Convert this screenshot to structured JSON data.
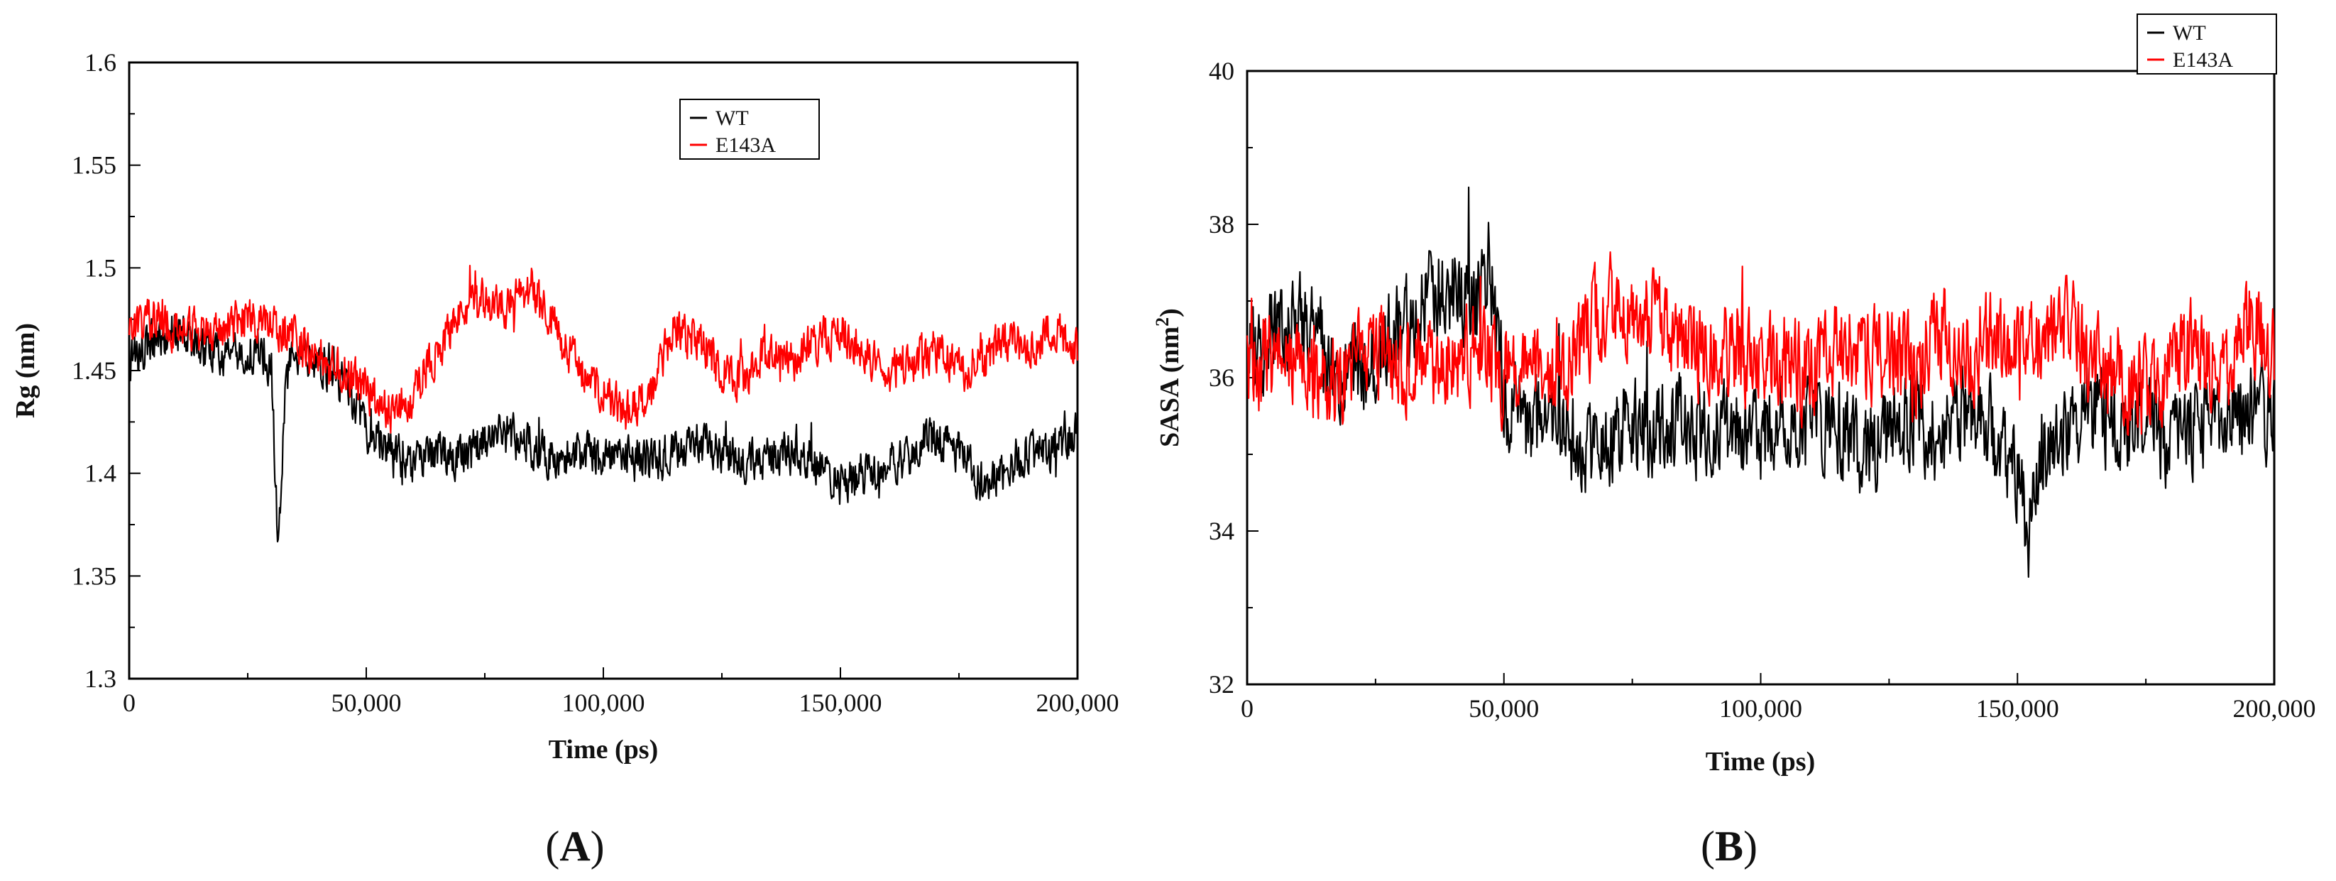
{
  "chart_data": [
    {
      "type": "line",
      "panel": "A",
      "panel_label_open": "(",
      "panel_label_letter": "A",
      "panel_label_close": ")",
      "xlabel": "Time (ps)",
      "ylabel": "Rg (nm)",
      "xlim": [
        0,
        200000
      ],
      "ylim": [
        1.3,
        1.6
      ],
      "xticks": [
        0,
        50000,
        100000,
        150000,
        200000
      ],
      "xtick_labels": [
        "0",
        "50,000",
        "100,000",
        "150,000",
        "200,000"
      ],
      "yticks": [
        1.3,
        1.35,
        1.4,
        1.45,
        1.5,
        1.55,
        1.6
      ],
      "ytick_labels": [
        "1.3",
        "1.35",
        "1.4",
        "1.45",
        "1.5",
        "1.55",
        "1.6"
      ],
      "legend_position": "top-center",
      "series": [
        {
          "name": "WT",
          "color": "#000000",
          "x": [
            0,
            5000,
            10000,
            15000,
            20000,
            25000,
            30000,
            31500,
            33000,
            35000,
            40000,
            45000,
            50000,
            55000,
            60000,
            65000,
            70000,
            75000,
            80000,
            85000,
            90000,
            95000,
            100000,
            105000,
            110000,
            115000,
            120000,
            125000,
            130000,
            135000,
            140000,
            145000,
            150000,
            155000,
            160000,
            165000,
            170000,
            175000,
            180000,
            185000,
            190000,
            195000,
            200000
          ],
          "y": [
            1.455,
            1.465,
            1.47,
            1.462,
            1.458,
            1.46,
            1.45,
            1.36,
            1.445,
            1.46,
            1.455,
            1.445,
            1.42,
            1.41,
            1.405,
            1.41,
            1.408,
            1.415,
            1.42,
            1.412,
            1.408,
            1.41,
            1.408,
            1.41,
            1.405,
            1.412,
            1.415,
            1.41,
            1.405,
            1.41,
            1.41,
            1.405,
            1.395,
            1.4,
            1.405,
            1.41,
            1.418,
            1.41,
            1.395,
            1.4,
            1.41,
            1.408,
            1.42
          ]
        },
        {
          "name": "E143A",
          "color": "#ff0000",
          "x": [
            0,
            5000,
            10000,
            15000,
            20000,
            25000,
            30000,
            35000,
            40000,
            45000,
            50000,
            55000,
            60000,
            65000,
            70000,
            75000,
            80000,
            85000,
            90000,
            95000,
            100000,
            105000,
            110000,
            115000,
            120000,
            125000,
            130000,
            135000,
            140000,
            145000,
            150000,
            155000,
            160000,
            165000,
            170000,
            175000,
            180000,
            185000,
            190000,
            195000,
            200000
          ],
          "y": [
            1.47,
            1.475,
            1.47,
            1.468,
            1.47,
            1.475,
            1.47,
            1.465,
            1.455,
            1.45,
            1.44,
            1.43,
            1.44,
            1.46,
            1.475,
            1.485,
            1.48,
            1.49,
            1.47,
            1.45,
            1.44,
            1.43,
            1.44,
            1.47,
            1.465,
            1.45,
            1.445,
            1.46,
            1.455,
            1.465,
            1.47,
            1.46,
            1.45,
            1.455,
            1.46,
            1.45,
            1.455,
            1.465,
            1.46,
            1.47,
            1.46
          ]
        }
      ]
    },
    {
      "type": "line",
      "panel": "B",
      "panel_label_open": "(",
      "panel_label_letter": "B",
      "panel_label_close": ")",
      "xlabel": "Time (ps)",
      "ylabel_main": "SASA (nm",
      "ylabel_sup": "2",
      "ylabel_tail": ")",
      "xlim": [
        0,
        200000
      ],
      "ylim": [
        32,
        40
      ],
      "xticks": [
        0,
        50000,
        100000,
        150000,
        200000
      ],
      "xtick_labels": [
        "0",
        "50,000",
        "100,000",
        "150,000",
        "200,000"
      ],
      "yticks": [
        32,
        34,
        36,
        38,
        40
      ],
      "ytick_labels": [
        "32",
        "34",
        "36",
        "38",
        "40"
      ],
      "legend_position": "top-right",
      "series": [
        {
          "name": "WT",
          "color": "#000000",
          "x": [
            0,
            5000,
            10000,
            15000,
            20000,
            25000,
            30000,
            35000,
            40000,
            45000,
            47000,
            50000,
            55000,
            60000,
            65000,
            70000,
            75000,
            80000,
            85000,
            90000,
            95000,
            100000,
            105000,
            110000,
            115000,
            120000,
            125000,
            130000,
            135000,
            140000,
            145000,
            150000,
            152000,
            155000,
            160000,
            165000,
            170000,
            175000,
            180000,
            185000,
            190000,
            195000,
            200000
          ],
          "y": [
            36.2,
            36.5,
            36.8,
            36.4,
            36.0,
            36.3,
            36.6,
            37.0,
            37.2,
            37.0,
            37.6,
            35.8,
            35.3,
            35.5,
            35.0,
            35.2,
            35.4,
            35.3,
            35.6,
            35.1,
            35.4,
            35.2,
            35.5,
            35.3,
            35.4,
            35.0,
            35.3,
            35.5,
            35.2,
            35.6,
            35.3,
            34.8,
            33.8,
            35.0,
            35.4,
            35.6,
            35.3,
            35.5,
            35.2,
            35.4,
            35.3,
            35.6,
            35.5
          ]
        },
        {
          "name": "E143A",
          "color": "#ff0000",
          "x": [
            0,
            5000,
            10000,
            15000,
            20000,
            25000,
            30000,
            35000,
            40000,
            45000,
            50000,
            55000,
            60000,
            65000,
            70000,
            75000,
            80000,
            85000,
            90000,
            95000,
            100000,
            105000,
            110000,
            115000,
            120000,
            125000,
            130000,
            135000,
            140000,
            145000,
            150000,
            155000,
            160000,
            165000,
            170000,
            175000,
            180000,
            185000,
            190000,
            195000,
            200000
          ],
          "y": [
            36.0,
            36.3,
            36.1,
            35.8,
            36.2,
            36.4,
            36.0,
            36.3,
            36.1,
            36.5,
            36.0,
            36.2,
            35.9,
            36.4,
            37.0,
            36.6,
            36.8,
            36.5,
            36.2,
            36.4,
            36.1,
            36.3,
            36.0,
            36.5,
            36.2,
            36.4,
            36.1,
            36.6,
            36.3,
            36.5,
            36.2,
            36.4,
            36.6,
            36.3,
            36.0,
            35.8,
            36.2,
            36.4,
            36.1,
            36.7,
            36.3
          ]
        }
      ]
    }
  ]
}
